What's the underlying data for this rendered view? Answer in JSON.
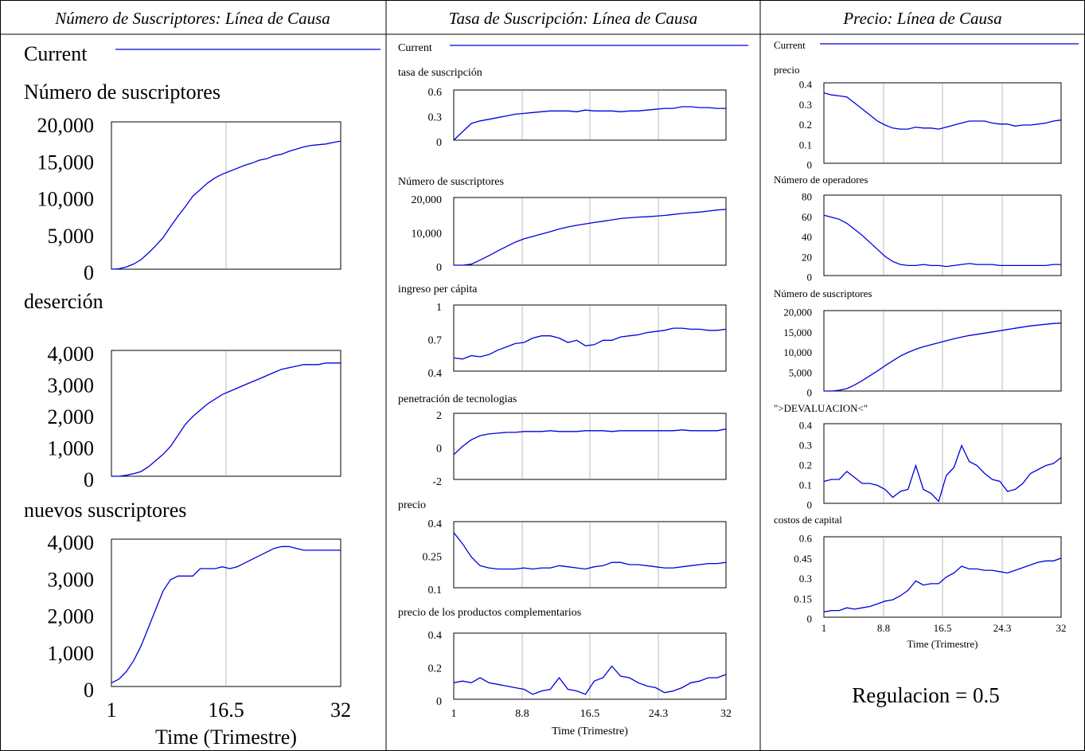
{
  "panels": [
    {
      "title": "Número de Suscriptores: Línea de Causa",
      "legend": "Current",
      "xlabel": "Time (Trimestre)"
    },
    {
      "title": "Tasa de Suscripción: Línea de Causa",
      "legend": "Current",
      "xlabel": "Time (Trimestre)"
    },
    {
      "title": "Precio: Línea de Causa",
      "legend": "Current",
      "xlabel": "Time (Trimestre)",
      "annotation": "Regulacion = 0.5"
    }
  ],
  "chart_data": [
    {
      "type": "line",
      "title": "Número de suscriptores",
      "color": "#0000dd",
      "grid": true,
      "x": [
        1,
        2,
        3,
        4,
        5,
        6,
        7,
        8,
        9,
        10,
        11,
        12,
        13,
        14,
        15,
        16,
        17,
        18,
        19,
        20,
        21,
        22,
        23,
        24,
        25,
        26,
        27,
        28,
        29,
        30,
        31,
        32
      ],
      "xlim": [
        1,
        32
      ],
      "xticks": [
        1,
        16.5,
        32
      ],
      "ylim": [
        0,
        20000
      ],
      "yticks": [
        0,
        {
          "value": 5000,
          "label": "5,000"
        },
        {
          "value": 10000,
          "label": "10,000"
        },
        {
          "value": 15000,
          "label": "15,000"
        },
        {
          "value": 20000,
          "label": "20,000"
        }
      ],
      "values": [
        0,
        50,
        300,
        700,
        1300,
        2200,
        3200,
        4300,
        5800,
        7200,
        8500,
        9900,
        10800,
        11700,
        12400,
        12900,
        13300,
        13700,
        14100,
        14400,
        14800,
        15000,
        15400,
        15600,
        16000,
        16300,
        16600,
        16800,
        16900,
        17000,
        17200,
        17400
      ]
    },
    {
      "type": "line",
      "title": "deserción",
      "color": "#0000dd",
      "grid": true,
      "x": [
        1,
        2,
        3,
        4,
        5,
        6,
        7,
        8,
        9,
        10,
        11,
        12,
        13,
        14,
        15,
        16,
        17,
        18,
        19,
        20,
        21,
        22,
        23,
        24,
        25,
        26,
        27,
        28,
        29,
        30,
        31,
        32
      ],
      "xlim": [
        1,
        32
      ],
      "xticks": [
        1,
        16.5,
        32
      ],
      "ylim": [
        0,
        4000
      ],
      "yticks": [
        0,
        {
          "value": 1000,
          "label": "1,000"
        },
        {
          "value": 2000,
          "label": "2,000"
        },
        {
          "value": 3000,
          "label": "3,000"
        },
        {
          "value": 4000,
          "label": "4,000"
        }
      ],
      "values": [
        0,
        0,
        30,
        80,
        150,
        300,
        500,
        700,
        950,
        1300,
        1650,
        1900,
        2100,
        2300,
        2450,
        2600,
        2700,
        2800,
        2900,
        3000,
        3100,
        3200,
        3300,
        3400,
        3450,
        3500,
        3550,
        3550,
        3550,
        3600,
        3600,
        3600
      ]
    },
    {
      "type": "line",
      "title": "nuevos suscriptores",
      "color": "#0000dd",
      "grid": true,
      "x": [
        1,
        2,
        3,
        4,
        5,
        6,
        7,
        8,
        9,
        10,
        11,
        12,
        13,
        14,
        15,
        16,
        17,
        18,
        19,
        20,
        21,
        22,
        23,
        24,
        25,
        26,
        27,
        28,
        29,
        30,
        31,
        32
      ],
      "xlim": [
        1,
        32
      ],
      "xticks": [
        1,
        16.5,
        32
      ],
      "ylim": [
        0,
        4000
      ],
      "yticks": [
        0,
        {
          "value": 1000,
          "label": "1,000"
        },
        {
          "value": 2000,
          "label": "2,000"
        },
        {
          "value": 3000,
          "label": "3,000"
        },
        {
          "value": 4000,
          "label": "4,000"
        }
      ],
      "values": [
        100,
        200,
        400,
        700,
        1100,
        1600,
        2100,
        2600,
        2900,
        3000,
        3000,
        3000,
        3200,
        3200,
        3200,
        3250,
        3200,
        3250,
        3350,
        3450,
        3550,
        3650,
        3750,
        3800,
        3800,
        3750,
        3700,
        3700,
        3700,
        3700,
        3700,
        3700
      ]
    },
    {
      "type": "line",
      "title": "tasa de suscripción",
      "color": "#0000dd",
      "grid": true,
      "x": [
        1,
        2,
        3,
        4,
        5,
        6,
        7,
        8,
        9,
        10,
        11,
        12,
        13,
        14,
        15,
        16,
        17,
        18,
        19,
        20,
        21,
        22,
        23,
        24,
        25,
        26,
        27,
        28,
        29,
        30,
        31,
        32
      ],
      "xlim": [
        1,
        32
      ],
      "xticks": [
        1,
        8.8,
        16.5,
        24.3,
        32
      ],
      "ylim": [
        0,
        0.6
      ],
      "yticks": [
        0,
        0.3,
        0.6
      ],
      "values": [
        0,
        0.1,
        0.2,
        0.23,
        0.25,
        0.27,
        0.29,
        0.31,
        0.32,
        0.33,
        0.34,
        0.35,
        0.35,
        0.35,
        0.34,
        0.36,
        0.35,
        0.35,
        0.35,
        0.34,
        0.35,
        0.35,
        0.36,
        0.37,
        0.38,
        0.38,
        0.4,
        0.4,
        0.39,
        0.39,
        0.38,
        0.38
      ]
    },
    {
      "type": "line",
      "title": "Número de suscriptores",
      "color": "#0000dd",
      "grid": true,
      "x": [
        1,
        2,
        3,
        4,
        5,
        6,
        7,
        8,
        9,
        10,
        11,
        12,
        13,
        14,
        15,
        16,
        17,
        18,
        19,
        20,
        21,
        22,
        23,
        24,
        25,
        26,
        27,
        28,
        29,
        30,
        31,
        32
      ],
      "xlim": [
        1,
        32
      ],
      "xticks": [
        1,
        8.8,
        16.5,
        24.3,
        32
      ],
      "ylim": [
        0,
        20000
      ],
      "yticks": [
        0,
        {
          "value": 10000,
          "label": "10,000"
        },
        {
          "value": 20000,
          "label": "20,000"
        }
      ],
      "values": [
        0,
        0,
        300,
        1500,
        2800,
        4200,
        5500,
        6800,
        7800,
        8500,
        9200,
        9900,
        10700,
        11300,
        11800,
        12200,
        12600,
        13000,
        13400,
        13800,
        14000,
        14200,
        14300,
        14500,
        14700,
        15000,
        15300,
        15500,
        15700,
        16000,
        16300,
        16500
      ]
    },
    {
      "type": "line",
      "title": "ingreso per cápita",
      "color": "#0000dd",
      "grid": true,
      "x": [
        1,
        2,
        3,
        4,
        5,
        6,
        7,
        8,
        9,
        10,
        11,
        12,
        13,
        14,
        15,
        16,
        17,
        18,
        19,
        20,
        21,
        22,
        23,
        24,
        25,
        26,
        27,
        28,
        29,
        30,
        31,
        32
      ],
      "xlim": [
        1,
        32
      ],
      "xticks": [
        1,
        8.8,
        16.5,
        24.3,
        32
      ],
      "ylim": [
        0.4,
        1
      ],
      "yticks": [
        0.4,
        0.7,
        1
      ],
      "values": [
        0.52,
        0.51,
        0.54,
        0.53,
        0.55,
        0.59,
        0.62,
        0.65,
        0.66,
        0.7,
        0.72,
        0.72,
        0.7,
        0.66,
        0.68,
        0.63,
        0.64,
        0.68,
        0.68,
        0.71,
        0.72,
        0.73,
        0.75,
        0.76,
        0.77,
        0.79,
        0.79,
        0.78,
        0.78,
        0.77,
        0.77,
        0.78
      ]
    },
    {
      "type": "line",
      "title": "penetración de tecnologias",
      "color": "#0000dd",
      "grid": true,
      "x": [
        1,
        2,
        3,
        4,
        5,
        6,
        7,
        8,
        9,
        10,
        11,
        12,
        13,
        14,
        15,
        16,
        17,
        18,
        19,
        20,
        21,
        22,
        23,
        24,
        25,
        26,
        27,
        28,
        29,
        30,
        31,
        32
      ],
      "xlim": [
        1,
        32
      ],
      "xticks": [
        1,
        8.8,
        16.5,
        24.3,
        32
      ],
      "ylim": [
        -2,
        2
      ],
      "yticks": [
        -2,
        0,
        2
      ],
      "values": [
        -0.5,
        0,
        0.4,
        0.65,
        0.75,
        0.8,
        0.85,
        0.85,
        0.9,
        0.9,
        0.9,
        0.95,
        0.9,
        0.9,
        0.9,
        0.95,
        0.95,
        0.95,
        0.9,
        0.95,
        0.95,
        0.95,
        0.95,
        0.95,
        0.95,
        0.95,
        1,
        0.95,
        0.95,
        0.95,
        0.95,
        1.05
      ]
    },
    {
      "type": "line",
      "title": "precio",
      "color": "#0000dd",
      "grid": true,
      "x": [
        1,
        2,
        3,
        4,
        5,
        6,
        7,
        8,
        9,
        10,
        11,
        12,
        13,
        14,
        15,
        16,
        17,
        18,
        19,
        20,
        21,
        22,
        23,
        24,
        25,
        26,
        27,
        28,
        29,
        30,
        31,
        32
      ],
      "xlim": [
        1,
        32
      ],
      "xticks": [
        1,
        8.8,
        16.5,
        24.3,
        32
      ],
      "ylim": [
        0.1,
        0.4
      ],
      "yticks": [
        0.1,
        0.25,
        0.4
      ],
      "values": [
        0.35,
        0.3,
        0.24,
        0.2,
        0.19,
        0.185,
        0.185,
        0.185,
        0.19,
        0.185,
        0.19,
        0.19,
        0.2,
        0.195,
        0.19,
        0.185,
        0.195,
        0.2,
        0.215,
        0.215,
        0.205,
        0.205,
        0.2,
        0.195,
        0.19,
        0.19,
        0.195,
        0.2,
        0.205,
        0.21,
        0.21,
        0.215
      ]
    },
    {
      "type": "line",
      "title": "precio de los productos complementarios",
      "color": "#0000dd",
      "grid": true,
      "x": [
        1,
        2,
        3,
        4,
        5,
        6,
        7,
        8,
        9,
        10,
        11,
        12,
        13,
        14,
        15,
        16,
        17,
        18,
        19,
        20,
        21,
        22,
        23,
        24,
        25,
        26,
        27,
        28,
        29,
        30,
        31,
        32
      ],
      "xlim": [
        1,
        32
      ],
      "xticks": [
        1,
        8.8,
        16.5,
        24.3,
        32
      ],
      "ylim": [
        0,
        0.4
      ],
      "yticks": [
        0,
        0.2,
        0.4
      ],
      "values": [
        0.1,
        0.11,
        0.1,
        0.13,
        0.1,
        0.09,
        0.08,
        0.07,
        0.06,
        0.03,
        0.05,
        0.06,
        0.13,
        0.06,
        0.05,
        0.03,
        0.11,
        0.13,
        0.2,
        0.14,
        0.13,
        0.1,
        0.08,
        0.07,
        0.04,
        0.05,
        0.07,
        0.1,
        0.11,
        0.13,
        0.13,
        0.15
      ]
    },
    {
      "type": "line",
      "title": "precio",
      "color": "#0000dd",
      "grid": true,
      "x": [
        1,
        2,
        3,
        4,
        5,
        6,
        7,
        8,
        9,
        10,
        11,
        12,
        13,
        14,
        15,
        16,
        17,
        18,
        19,
        20,
        21,
        22,
        23,
        24,
        25,
        26,
        27,
        28,
        29,
        30,
        31,
        32
      ],
      "xlim": [
        1,
        32
      ],
      "xticks": [
        1,
        8.8,
        16.5,
        24.3,
        32
      ],
      "ylim": [
        0,
        0.4
      ],
      "yticks": [
        0,
        0.1,
        0.2,
        0.3,
        0.4
      ],
      "values": [
        0.35,
        0.34,
        0.335,
        0.33,
        0.3,
        0.27,
        0.24,
        0.21,
        0.19,
        0.175,
        0.17,
        0.17,
        0.18,
        0.175,
        0.175,
        0.17,
        0.18,
        0.19,
        0.2,
        0.21,
        0.21,
        0.21,
        0.2,
        0.195,
        0.195,
        0.185,
        0.19,
        0.19,
        0.195,
        0.2,
        0.21,
        0.215
      ]
    },
    {
      "type": "line",
      "title": "Número de operadores",
      "color": "#0000dd",
      "grid": true,
      "x": [
        1,
        2,
        3,
        4,
        5,
        6,
        7,
        8,
        9,
        10,
        11,
        12,
        13,
        14,
        15,
        16,
        17,
        18,
        19,
        20,
        21,
        22,
        23,
        24,
        25,
        26,
        27,
        28,
        29,
        30,
        31,
        32
      ],
      "xlim": [
        1,
        32
      ],
      "xticks": [
        1,
        8.8,
        16.5,
        24.3,
        32
      ],
      "ylim": [
        0,
        80
      ],
      "yticks": [
        0,
        20,
        40,
        60,
        80
      ],
      "values": [
        60,
        58,
        56,
        52,
        46,
        40,
        33,
        26,
        19,
        14,
        11,
        10,
        10,
        11,
        10,
        10,
        9,
        10,
        11,
        12,
        11,
        11,
        11,
        10,
        10,
        10,
        10,
        10,
        10,
        10,
        11,
        11
      ]
    },
    {
      "type": "line",
      "title": "Número de suscriptores",
      "color": "#0000dd",
      "grid": true,
      "x": [
        1,
        2,
        3,
        4,
        5,
        6,
        7,
        8,
        9,
        10,
        11,
        12,
        13,
        14,
        15,
        16,
        17,
        18,
        19,
        20,
        21,
        22,
        23,
        24,
        25,
        26,
        27,
        28,
        29,
        30,
        31,
        32
      ],
      "xlim": [
        1,
        32
      ],
      "xticks": [
        1,
        8.8,
        16.5,
        24.3,
        32
      ],
      "ylim": [
        0,
        20000
      ],
      "yticks": [
        0,
        {
          "value": 5000,
          "label": "5,000"
        },
        {
          "value": 10000,
          "label": "10,000"
        },
        {
          "value": 15000,
          "label": "15,000"
        },
        {
          "value": 20000,
          "label": "20,000"
        }
      ],
      "values": [
        0,
        0,
        200,
        600,
        1500,
        2600,
        3800,
        5000,
        6300,
        7500,
        8700,
        9600,
        10400,
        11000,
        11500,
        12000,
        12500,
        13000,
        13400,
        13800,
        14100,
        14400,
        14700,
        15000,
        15300,
        15600,
        15900,
        16200,
        16400,
        16600,
        16800,
        16900
      ]
    },
    {
      "type": "line",
      "title": "\">DEVALUACION<\"",
      "color": "#0000dd",
      "grid": true,
      "x": [
        1,
        2,
        3,
        4,
        5,
        6,
        7,
        8,
        9,
        10,
        11,
        12,
        13,
        14,
        15,
        16,
        17,
        18,
        19,
        20,
        21,
        22,
        23,
        24,
        25,
        26,
        27,
        28,
        29,
        30,
        31,
        32
      ],
      "xlim": [
        1,
        32
      ],
      "xticks": [
        1,
        8.8,
        16.5,
        24.3,
        32
      ],
      "ylim": [
        0,
        0.4
      ],
      "yticks": [
        0,
        0.1,
        0.2,
        0.3,
        0.4
      ],
      "values": [
        0.11,
        0.12,
        0.12,
        0.16,
        0.13,
        0.1,
        0.1,
        0.09,
        0.07,
        0.03,
        0.06,
        0.07,
        0.19,
        0.07,
        0.05,
        0.01,
        0.14,
        0.18,
        0.29,
        0.21,
        0.19,
        0.15,
        0.12,
        0.11,
        0.06,
        0.07,
        0.1,
        0.15,
        0.17,
        0.19,
        0.2,
        0.23
      ]
    },
    {
      "type": "line",
      "title": "costos de capital",
      "color": "#0000dd",
      "grid": true,
      "x": [
        1,
        2,
        3,
        4,
        5,
        6,
        7,
        8,
        9,
        10,
        11,
        12,
        13,
        14,
        15,
        16,
        17,
        18,
        19,
        20,
        21,
        22,
        23,
        24,
        25,
        26,
        27,
        28,
        29,
        30,
        31,
        32
      ],
      "xlim": [
        1,
        32
      ],
      "xticks": [
        1,
        8.8,
        16.5,
        24.3,
        32
      ],
      "ylim": [
        0,
        0.6
      ],
      "yticks": [
        0,
        0.15,
        0.3,
        0.45,
        0.6
      ],
      "values": [
        0.04,
        0.05,
        0.05,
        0.07,
        0.06,
        0.07,
        0.08,
        0.1,
        0.12,
        0.13,
        0.16,
        0.2,
        0.27,
        0.24,
        0.25,
        0.25,
        0.3,
        0.33,
        0.38,
        0.36,
        0.36,
        0.35,
        0.35,
        0.34,
        0.33,
        0.35,
        0.37,
        0.39,
        0.41,
        0.42,
        0.42,
        0.44
      ]
    }
  ]
}
